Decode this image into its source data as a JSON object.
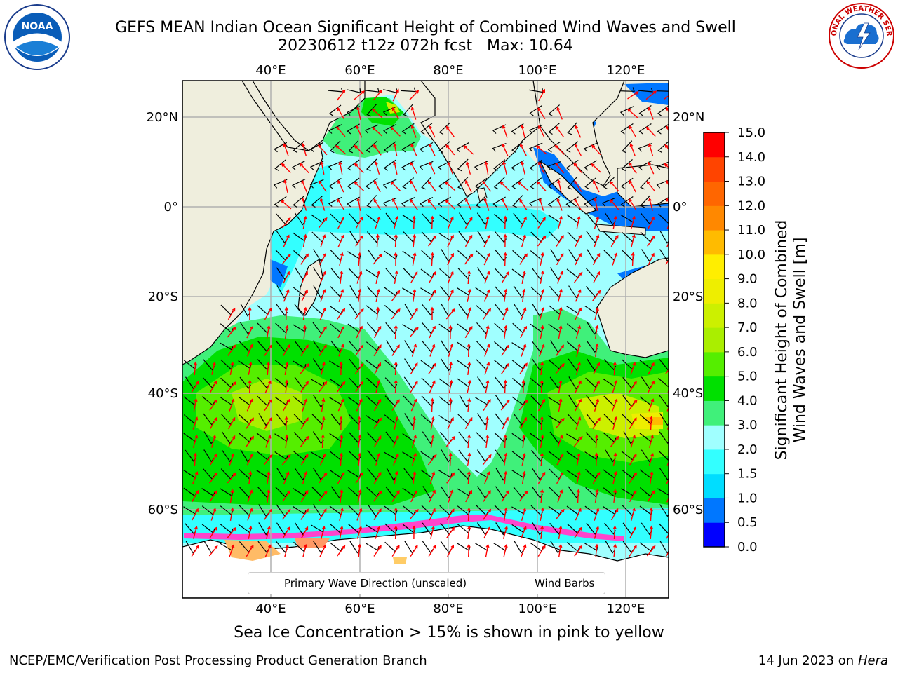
{
  "header": {
    "title_line1": "GEFS MEAN Indian Ocean Significant Height of Combined Wind Waves and Swell",
    "title_line2": "20230612 t12z 072h fcst   Max: 10.64"
  },
  "logos": {
    "left": {
      "name": "noaa-logo",
      "text": "NOAA"
    },
    "right": {
      "name": "nws-logo",
      "text": "NATIONAL WEATHER SERVICE"
    }
  },
  "map": {
    "lon_ticks_top": [
      "40°E",
      "60°E",
      "80°E",
      "100°E",
      "120°E"
    ],
    "lon_ticks_bottom": [
      "40°E",
      "60°E",
      "80°E",
      "100°E",
      "120°E"
    ],
    "lat_ticks_left": [
      "20°N",
      "0°",
      "20°S",
      "40°S",
      "60°S"
    ],
    "lat_ticks_right": [
      "20°N",
      "0°",
      "20°S",
      "40°S",
      "60°S"
    ],
    "colors": {
      "land": "#efeedd",
      "ice": "#ffffff",
      "grid": "#b0b0b0",
      "wave_arrow": "#ff0000",
      "wind_barb": "#000000"
    }
  },
  "legend": {
    "wave_label": "Primary Wave Direction (unscaled)",
    "wind_label": "Wind Barbs",
    "wave_color": "#ff0000",
    "wind_color": "#000000"
  },
  "colorbar": {
    "label": "Significant Height of Combined\nWind Waves and Swell [m]",
    "label_line1": "Significant Height of Combined",
    "label_line2": "Wind Waves and Swell [m]",
    "ticks": [
      "0.0",
      "0.5",
      "1.0",
      "1.5",
      "2.0",
      "3.0",
      "4.0",
      "5.0",
      "6.0",
      "7.0",
      "8.0",
      "9.0",
      "10.0",
      "11.0",
      "12.0",
      "13.0",
      "14.0",
      "15.0"
    ],
    "colors": [
      "#0000ff",
      "#0077ff",
      "#00ddff",
      "#33ffff",
      "#a0ffff",
      "#40f07a",
      "#00e000",
      "#55ee00",
      "#aaee00",
      "#ccf000",
      "#eeee00",
      "#ffee00",
      "#ffbb00",
      "#ff8800",
      "#ff6600",
      "#ff4400",
      "#ff0000"
    ]
  },
  "footer": {
    "ice_note": "Sea Ice Concentration > 15% is shown in pink to yellow",
    "credit": "NCEP/EMC/Verification Post Processing Product Generation Branch",
    "date": "14 Jun 2023 on",
    "machine": "Hera"
  }
}
